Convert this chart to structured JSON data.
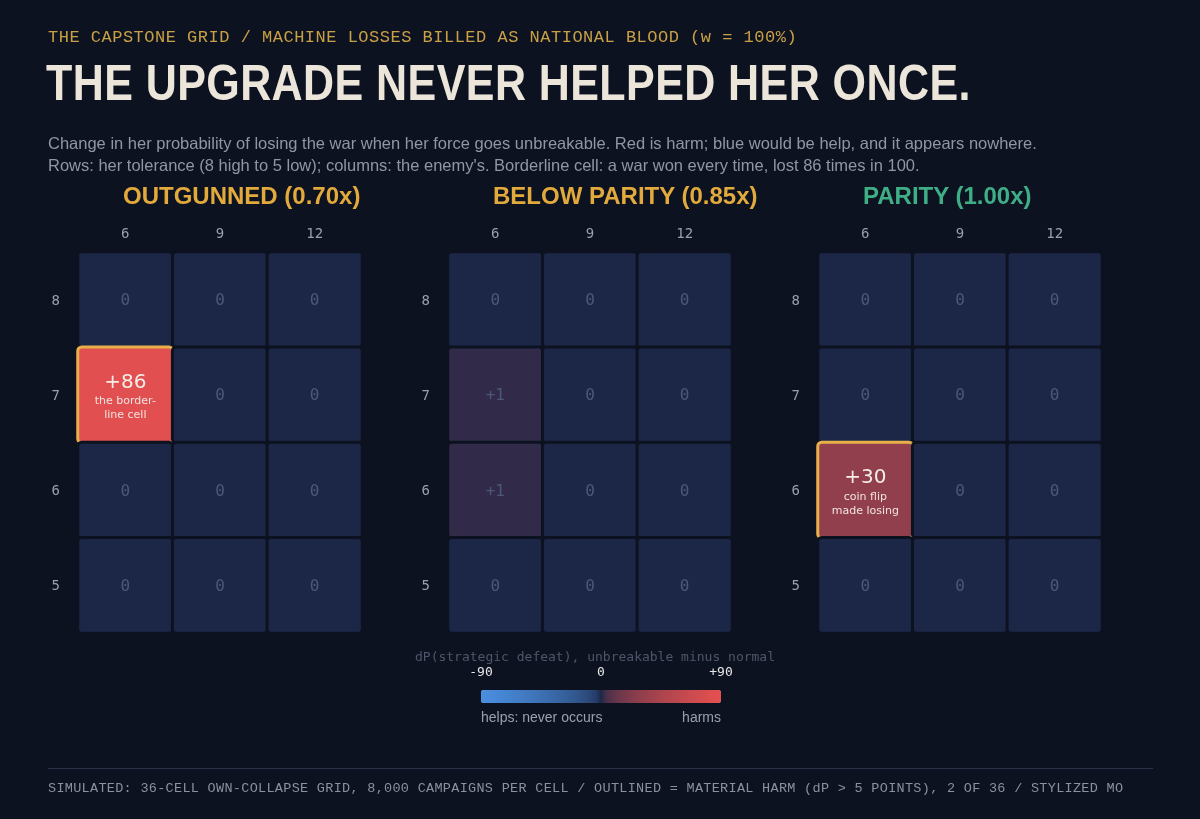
{
  "chart_data": [
    {
      "type": "heatmap",
      "title": "OUTGUNNED (0.70x)",
      "categories": [
        "6",
        "9",
        "12"
      ],
      "y_categories": [
        "8",
        "7",
        "6",
        "5"
      ],
      "cells": [
        [
          0,
          0,
          0
        ],
        [
          86,
          0,
          0
        ],
        [
          0,
          0,
          0
        ],
        [
          0,
          0,
          0
        ]
      ],
      "cell_labels": [
        [
          "0",
          "0",
          "0"
        ],
        [
          "+86\nthe border-\nline cell",
          "0",
          "0"
        ],
        [
          "0",
          "0",
          "0"
        ],
        [
          "0",
          "0",
          "0"
        ]
      ],
      "annotations": [
        "THE CAPSTONE GRID / MACHINE LOSSES BILLED AS NATIONAL BLOOD (w = 100%)",
        "THE UPGRADE NEVER HELPED HER ONCE.",
        "Change in her probability of losing the war when her force goes unbreakable. Red is harm; blue would be help, and it appears nowhere.\nRows: her tolerance (8 high to 5 low); columns: the enemy's. Borderline cell: a war won every time, lost 86 times in 100.",
        "SIMULATED: 36-CELL OWN-COLLAPSE GRID, 8,000 CAMPAIGNS PER CELL / OUTLINED = MATERIAL HARM (dP > 5 POINTS), 2 OF 36 / STYLIZED MO"
      ]
    },
    {
      "type": "heatmap",
      "title": "BELOW PARITY (0.85x)",
      "categories": [
        "6",
        "9",
        "12"
      ],
      "y_categories": [
        "8",
        "7",
        "6",
        "5"
      ],
      "cells": [
        [
          0,
          0,
          0
        ],
        [
          1,
          0,
          0
        ],
        [
          1,
          0,
          0
        ],
        [
          0,
          0,
          0
        ]
      ],
      "cell_labels": [
        [
          "0",
          "0",
          "0"
        ],
        [
          "+1",
          "0",
          "0"
        ],
        [
          "+1",
          "0",
          "0"
        ],
        [
          "0",
          "0",
          "0"
        ]
      ],
      "clabel": "dP(strategic defeat), unbreakable minus normal",
      "clim": [
        -90,
        90
      ],
      "cticks": [
        {
          "value": -90,
          "label": "-90"
        },
        0,
        {
          "value": 90,
          "label": "+90"
        }
      ],
      "annotations": [
        "helps: never occurs",
        "harms"
      ]
    },
    {
      "type": "heatmap",
      "title": "PARITY (1.00x)",
      "categories": [
        "6",
        "9",
        "12"
      ],
      "y_categories": [
        "8",
        "7",
        "6",
        "5"
      ],
      "cells": [
        [
          0,
          0,
          0
        ],
        [
          0,
          0,
          0
        ],
        [
          30,
          0,
          0
        ],
        [
          0,
          0,
          0
        ]
      ],
      "cell_labels": [
        [
          "0",
          "0",
          "0"
        ],
        [
          "0",
          "0",
          "0"
        ],
        [
          "+30\ncoin flip\nmade losing",
          "0",
          "0"
        ],
        [
          "0",
          "0",
          "0"
        ]
      ]
    }
  ]
}
